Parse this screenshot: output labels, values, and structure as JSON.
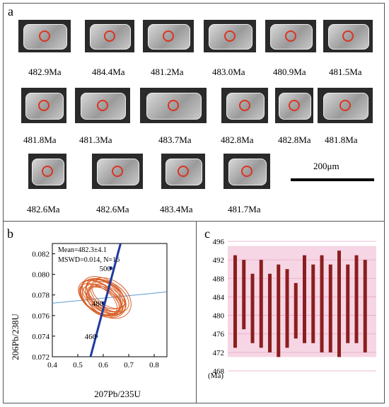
{
  "panel_a": {
    "label": "a",
    "ages": [
      "482.9Ma",
      "484.4Ma",
      "481.2Ma",
      "483.0Ma",
      "480.9Ma",
      "481.5Ma",
      "481.8Ma",
      "481.3Ma",
      "483.7Ma",
      "482.8Ma",
      "482.8Ma",
      "481.8Ma",
      "482.6Ma",
      "482.6Ma",
      "483.4Ma",
      "481.7Ma"
    ],
    "scale_label": "200μm"
  },
  "panel_b": {
    "label": "b",
    "stats_line1": "Mean=482.3±4.1",
    "stats_line2": "MSWD=0.014, N=16",
    "ylabel": "206Pb/238U",
    "xlabel": "207Pb/235U",
    "concordia_ages": [
      "500",
      "480",
      "460"
    ]
  },
  "panel_c": {
    "label": "c",
    "yunit": "(Ma)"
  },
  "chart_data": [
    {
      "type": "scatter",
      "subtype": "concordia",
      "x_ticks": [
        "0.4",
        "0.5",
        "0.6",
        "0.7",
        "0.8"
      ],
      "y_ticks": [
        "0.072",
        "0.074",
        "0.076",
        "0.078",
        "0.080",
        "0.082"
      ],
      "xlim": [
        0.4,
        0.85
      ],
      "ylim": [
        0.072,
        0.083
      ],
      "concordia_points": [
        {
          "age": "460",
          "x": 0.572,
          "y": 0.074
        },
        {
          "age": "480",
          "x": 0.6,
          "y": 0.0772
        },
        {
          "age": "500",
          "x": 0.63,
          "y": 0.0806
        }
      ],
      "ellipses": [
        {
          "cx": 0.59,
          "cy": 0.0775,
          "rx": 0.05,
          "ry": 0.002
        },
        {
          "cx": 0.6,
          "cy": 0.078,
          "rx": 0.06,
          "ry": 0.0023
        },
        {
          "cx": 0.61,
          "cy": 0.0778,
          "rx": 0.055,
          "ry": 0.0022
        },
        {
          "cx": 0.62,
          "cy": 0.0777,
          "rx": 0.07,
          "ry": 0.0024
        },
        {
          "cx": 0.58,
          "cy": 0.0776,
          "rx": 0.045,
          "ry": 0.0021
        },
        {
          "cx": 0.605,
          "cy": 0.0774,
          "rx": 0.05,
          "ry": 0.0019
        },
        {
          "cx": 0.595,
          "cy": 0.0779,
          "rx": 0.04,
          "ry": 0.0022
        },
        {
          "cx": 0.615,
          "cy": 0.0776,
          "rx": 0.045,
          "ry": 0.002
        },
        {
          "cx": 0.585,
          "cy": 0.0777,
          "rx": 0.055,
          "ry": 0.0023
        },
        {
          "cx": 0.6,
          "cy": 0.0776,
          "rx": 0.035,
          "ry": 0.0018
        },
        {
          "cx": 0.625,
          "cy": 0.0779,
          "rx": 0.05,
          "ry": 0.0021
        },
        {
          "cx": 0.605,
          "cy": 0.0781,
          "rx": 0.045,
          "ry": 0.002
        },
        {
          "cx": 0.59,
          "cy": 0.0778,
          "rx": 0.06,
          "ry": 0.0022
        },
        {
          "cx": 0.61,
          "cy": 0.0774,
          "rx": 0.04,
          "ry": 0.0019
        },
        {
          "cx": 0.6,
          "cy": 0.0777,
          "rx": 0.065,
          "ry": 0.0024
        },
        {
          "cx": 0.62,
          "cy": 0.078,
          "rx": 0.04,
          "ry": 0.0018
        }
      ],
      "colors": {
        "ellipse": "#d9602a",
        "concordia": "#1f3a9e",
        "mean_line": "#5a9bd5"
      }
    },
    {
      "type": "bar",
      "subtype": "range",
      "y_ticks": [
        "468",
        "472",
        "476",
        "480",
        "484",
        "488",
        "492",
        "496"
      ],
      "ylim": [
        468,
        496
      ],
      "bars": [
        {
          "low": 473,
          "high": 493
        },
        {
          "low": 477,
          "high": 492
        },
        {
          "low": 474,
          "high": 489
        },
        {
          "low": 473,
          "high": 492
        },
        {
          "low": 472,
          "high": 489
        },
        {
          "low": 471,
          "high": 491
        },
        {
          "low": 473,
          "high": 490
        },
        {
          "low": 475,
          "high": 487
        },
        {
          "low": 474,
          "high": 493
        },
        {
          "low": 474,
          "high": 491
        },
        {
          "low": 472,
          "high": 493
        },
        {
          "low": 472,
          "high": 491
        },
        {
          "low": 471,
          "high": 494
        },
        {
          "low": 474,
          "high": 491
        },
        {
          "low": 474,
          "high": 493
        },
        {
          "low": 472,
          "high": 492
        }
      ],
      "colors": {
        "bar": "#8b1e1e",
        "band": "#f6d6e4"
      }
    }
  ]
}
